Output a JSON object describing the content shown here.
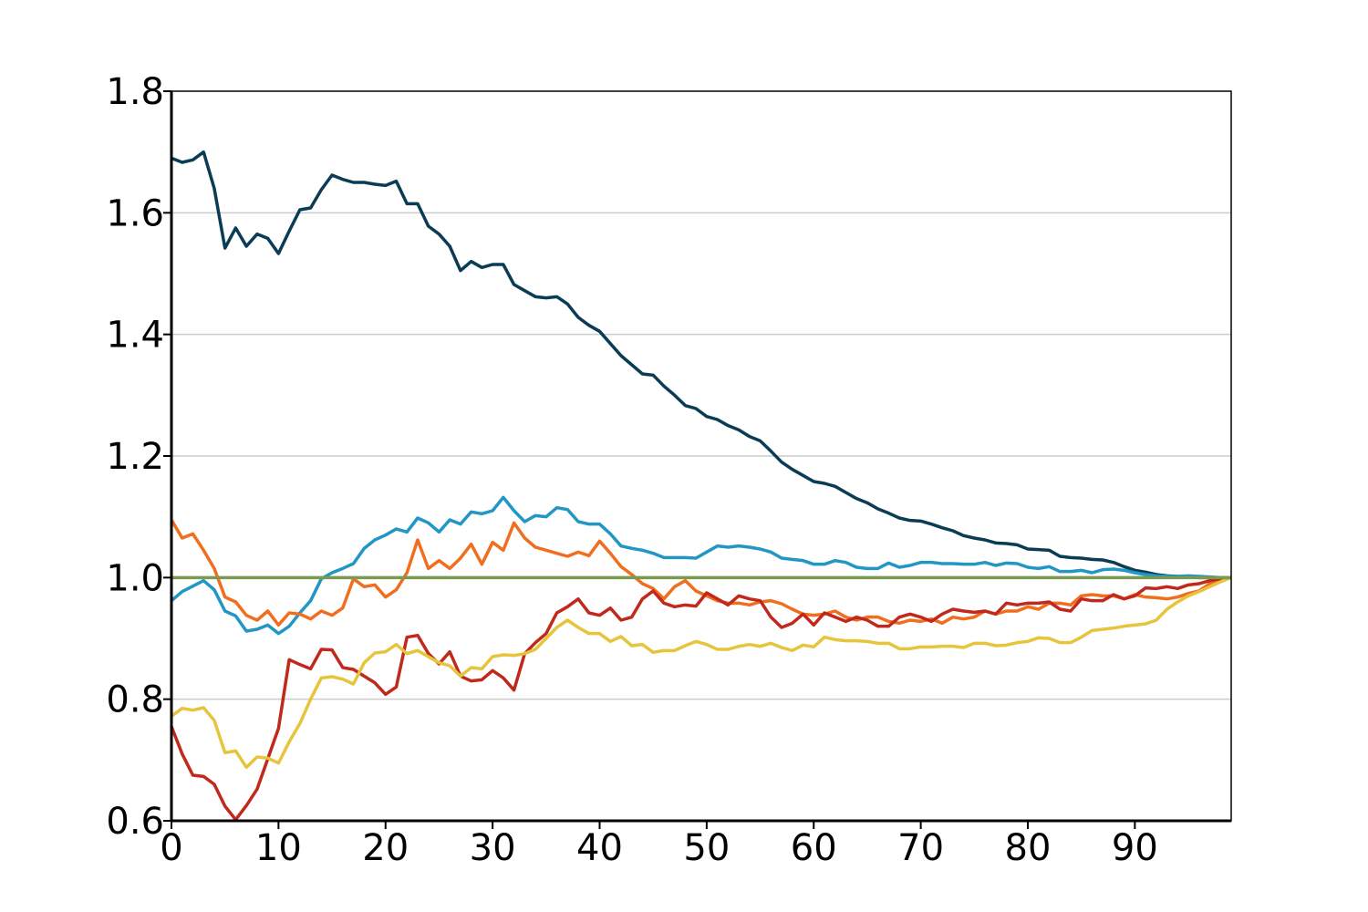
{
  "chart_data": {
    "type": "line",
    "title": "",
    "xlabel": "",
    "ylabel": "",
    "xlim": [
      0,
      99
    ],
    "ylim": [
      0.6,
      1.8
    ],
    "x_ticks": [
      "0",
      "10",
      "20",
      "30",
      "40",
      "50",
      "60",
      "70",
      "80",
      "90"
    ],
    "x_tick_values": [
      0,
      10,
      20,
      30,
      40,
      50,
      60,
      70,
      80,
      90
    ],
    "y_ticks": [
      "0.6",
      "0.8",
      "1.0",
      "1.2",
      "1.4",
      "1.6",
      "1.8"
    ],
    "y_tick_values": [
      0.6,
      0.8,
      1.0,
      1.2,
      1.4,
      1.6,
      1.8
    ],
    "grid": "horizontal",
    "x": [
      0,
      1,
      2,
      3,
      4,
      5,
      6,
      7,
      8,
      9,
      10,
      11,
      12,
      13,
      14,
      15,
      16,
      17,
      18,
      19,
      20,
      21,
      22,
      23,
      24,
      25,
      26,
      27,
      28,
      29,
      30,
      31,
      32,
      33,
      34,
      35,
      36,
      37,
      38,
      39,
      40,
      41,
      42,
      43,
      44,
      45,
      46,
      47,
      48,
      49,
      50,
      51,
      52,
      53,
      54,
      55,
      56,
      57,
      58,
      59,
      60,
      61,
      62,
      63,
      64,
      65,
      66,
      67,
      68,
      69,
      70,
      71,
      72,
      73,
      74,
      75,
      76,
      77,
      78,
      79,
      80,
      81,
      82,
      83,
      84,
      85,
      86,
      87,
      88,
      89,
      90,
      91,
      92,
      93,
      94,
      95,
      96,
      97,
      98,
      99
    ],
    "series": [
      {
        "color": "#0b3c55",
        "values": [
          1.69,
          1.683,
          1.687,
          1.7,
          1.64,
          1.542,
          1.575,
          1.545,
          1.565,
          1.558,
          1.533,
          1.57,
          1.605,
          1.608,
          1.638,
          1.662,
          1.655,
          1.65,
          1.65,
          1.647,
          1.645,
          1.652,
          1.615,
          1.615,
          1.578,
          1.565,
          1.545,
          1.505,
          1.52,
          1.51,
          1.515,
          1.515,
          1.482,
          1.472,
          1.462,
          1.46,
          1.462,
          1.45,
          1.428,
          1.415,
          1.405,
          1.385,
          1.365,
          1.35,
          1.335,
          1.333,
          1.315,
          1.3,
          1.283,
          1.278,
          1.265,
          1.26,
          1.25,
          1.243,
          1.232,
          1.225,
          1.208,
          1.19,
          1.178,
          1.168,
          1.158,
          1.155,
          1.15,
          1.14,
          1.13,
          1.123,
          1.113,
          1.106,
          1.098,
          1.094,
          1.093,
          1.088,
          1.082,
          1.077,
          1.069,
          1.065,
          1.062,
          1.057,
          1.056,
          1.054,
          1.047,
          1.046,
          1.045,
          1.035,
          1.033,
          1.032,
          1.03,
          1.029,
          1.025,
          1.018,
          1.012,
          1.009,
          1.005,
          1.003,
          1.002,
          1.001,
          1.0,
          1.0,
          1.0,
          1.0
        ]
      },
      {
        "color": "#2296c4",
        "values": [
          0.962,
          0.977,
          0.986,
          0.995,
          0.98,
          0.945,
          0.937,
          0.912,
          0.915,
          0.922,
          0.908,
          0.92,
          0.942,
          0.962,
          0.998,
          1.008,
          1.015,
          1.023,
          1.048,
          1.062,
          1.07,
          1.08,
          1.075,
          1.098,
          1.09,
          1.075,
          1.095,
          1.088,
          1.108,
          1.105,
          1.11,
          1.132,
          1.11,
          1.092,
          1.102,
          1.1,
          1.115,
          1.112,
          1.092,
          1.088,
          1.088,
          1.072,
          1.052,
          1.048,
          1.045,
          1.04,
          1.033,
          1.033,
          1.033,
          1.032,
          1.042,
          1.052,
          1.05,
          1.052,
          1.05,
          1.047,
          1.042,
          1.032,
          1.03,
          1.028,
          1.022,
          1.022,
          1.028,
          1.025,
          1.017,
          1.015,
          1.015,
          1.024,
          1.017,
          1.02,
          1.025,
          1.025,
          1.023,
          1.023,
          1.022,
          1.022,
          1.025,
          1.02,
          1.024,
          1.023,
          1.017,
          1.015,
          1.018,
          1.01,
          1.01,
          1.012,
          1.008,
          1.013,
          1.014,
          1.012,
          1.008,
          1.005,
          1.003,
          1.002,
          1.002,
          1.003,
          1.002,
          1.001,
          1.0,
          1.0
        ]
      },
      {
        "color": "#f06e1e",
        "values": [
          1.095,
          1.065,
          1.072,
          1.045,
          1.015,
          0.968,
          0.96,
          0.938,
          0.93,
          0.945,
          0.922,
          0.942,
          0.94,
          0.932,
          0.945,
          0.938,
          0.95,
          0.998,
          0.985,
          0.988,
          0.968,
          0.98,
          1.008,
          1.062,
          1.015,
          1.028,
          1.015,
          1.032,
          1.055,
          1.022,
          1.058,
          1.045,
          1.09,
          1.065,
          1.05,
          1.045,
          1.04,
          1.035,
          1.042,
          1.036,
          1.06,
          1.04,
          1.018,
          1.005,
          0.99,
          0.982,
          0.965,
          0.985,
          0.995,
          0.978,
          0.97,
          0.962,
          0.958,
          0.958,
          0.955,
          0.96,
          0.962,
          0.957,
          0.948,
          0.94,
          0.938,
          0.94,
          0.945,
          0.935,
          0.93,
          0.935,
          0.935,
          0.928,
          0.925,
          0.93,
          0.928,
          0.932,
          0.925,
          0.935,
          0.932,
          0.935,
          0.945,
          0.94,
          0.945,
          0.945,
          0.952,
          0.948,
          0.958,
          0.958,
          0.955,
          0.97,
          0.972,
          0.97,
          0.97,
          0.965,
          0.972,
          0.968,
          0.967,
          0.965,
          0.968,
          0.974,
          0.978,
          0.99,
          0.998,
          1.0
        ]
      },
      {
        "color": "#c1291c",
        "values": [
          0.755,
          0.71,
          0.675,
          0.673,
          0.66,
          0.624,
          0.602,
          0.625,
          0.652,
          0.702,
          0.752,
          0.865,
          0.857,
          0.85,
          0.882,
          0.881,
          0.852,
          0.849,
          0.838,
          0.827,
          0.808,
          0.82,
          0.902,
          0.905,
          0.875,
          0.858,
          0.878,
          0.838,
          0.83,
          0.832,
          0.847,
          0.835,
          0.815,
          0.875,
          0.893,
          0.908,
          0.942,
          0.952,
          0.965,
          0.942,
          0.938,
          0.95,
          0.93,
          0.935,
          0.965,
          0.978,
          0.958,
          0.952,
          0.955,
          0.953,
          0.975,
          0.965,
          0.955,
          0.97,
          0.965,
          0.962,
          0.935,
          0.918,
          0.925,
          0.94,
          0.922,
          0.942,
          0.935,
          0.928,
          0.935,
          0.93,
          0.92,
          0.92,
          0.935,
          0.94,
          0.935,
          0.928,
          0.94,
          0.948,
          0.945,
          0.943,
          0.945,
          0.94,
          0.958,
          0.955,
          0.958,
          0.958,
          0.96,
          0.948,
          0.945,
          0.965,
          0.962,
          0.962,
          0.972,
          0.965,
          0.97,
          0.983,
          0.982,
          0.985,
          0.982,
          0.988,
          0.99,
          0.995,
          0.998,
          1.0
        ]
      },
      {
        "color": "#e6c53c",
        "values": [
          0.772,
          0.785,
          0.782,
          0.786,
          0.765,
          0.712,
          0.715,
          0.688,
          0.705,
          0.703,
          0.695,
          0.73,
          0.76,
          0.8,
          0.835,
          0.837,
          0.833,
          0.825,
          0.86,
          0.876,
          0.878,
          0.89,
          0.875,
          0.88,
          0.87,
          0.86,
          0.855,
          0.838,
          0.852,
          0.85,
          0.87,
          0.873,
          0.872,
          0.875,
          0.882,
          0.9,
          0.918,
          0.93,
          0.918,
          0.908,
          0.908,
          0.895,
          0.903,
          0.888,
          0.89,
          0.877,
          0.88,
          0.88,
          0.888,
          0.895,
          0.89,
          0.882,
          0.882,
          0.887,
          0.89,
          0.887,
          0.892,
          0.885,
          0.88,
          0.889,
          0.886,
          0.902,
          0.898,
          0.896,
          0.896,
          0.895,
          0.892,
          0.892,
          0.883,
          0.883,
          0.886,
          0.886,
          0.887,
          0.887,
          0.885,
          0.892,
          0.892,
          0.888,
          0.889,
          0.893,
          0.895,
          0.901,
          0.9,
          0.893,
          0.893,
          0.902,
          0.913,
          0.915,
          0.917,
          0.92,
          0.922,
          0.924,
          0.93,
          0.948,
          0.96,
          0.97,
          0.977,
          0.985,
          0.993,
          1.0
        ]
      },
      {
        "color": "#7a9a50",
        "values": [
          1.0,
          1.0,
          1.0,
          1.0,
          1.0,
          1.0,
          1.0,
          1.0,
          1.0,
          1.0,
          1.0,
          1.0,
          1.0,
          1.0,
          1.0,
          1.0,
          1.0,
          1.0,
          1.0,
          1.0,
          1.0,
          1.0,
          1.0,
          1.0,
          1.0,
          1.0,
          1.0,
          1.0,
          1.0,
          1.0,
          1.0,
          1.0,
          1.0,
          1.0,
          1.0,
          1.0,
          1.0,
          1.0,
          1.0,
          1.0,
          1.0,
          1.0,
          1.0,
          1.0,
          1.0,
          1.0,
          1.0,
          1.0,
          1.0,
          1.0,
          1.0,
          1.0,
          1.0,
          1.0,
          1.0,
          1.0,
          1.0,
          1.0,
          1.0,
          1.0,
          1.0,
          1.0,
          1.0,
          1.0,
          1.0,
          1.0,
          1.0,
          1.0,
          1.0,
          1.0,
          1.0,
          1.0,
          1.0,
          1.0,
          1.0,
          1.0,
          1.0,
          1.0,
          1.0,
          1.0,
          1.0,
          1.0,
          1.0,
          1.0,
          1.0,
          1.0,
          1.0,
          1.0,
          1.0,
          1.0,
          1.0,
          1.0,
          1.0,
          1.0,
          1.0,
          1.0,
          1.0,
          1.0,
          1.0,
          1.0
        ]
      }
    ]
  }
}
